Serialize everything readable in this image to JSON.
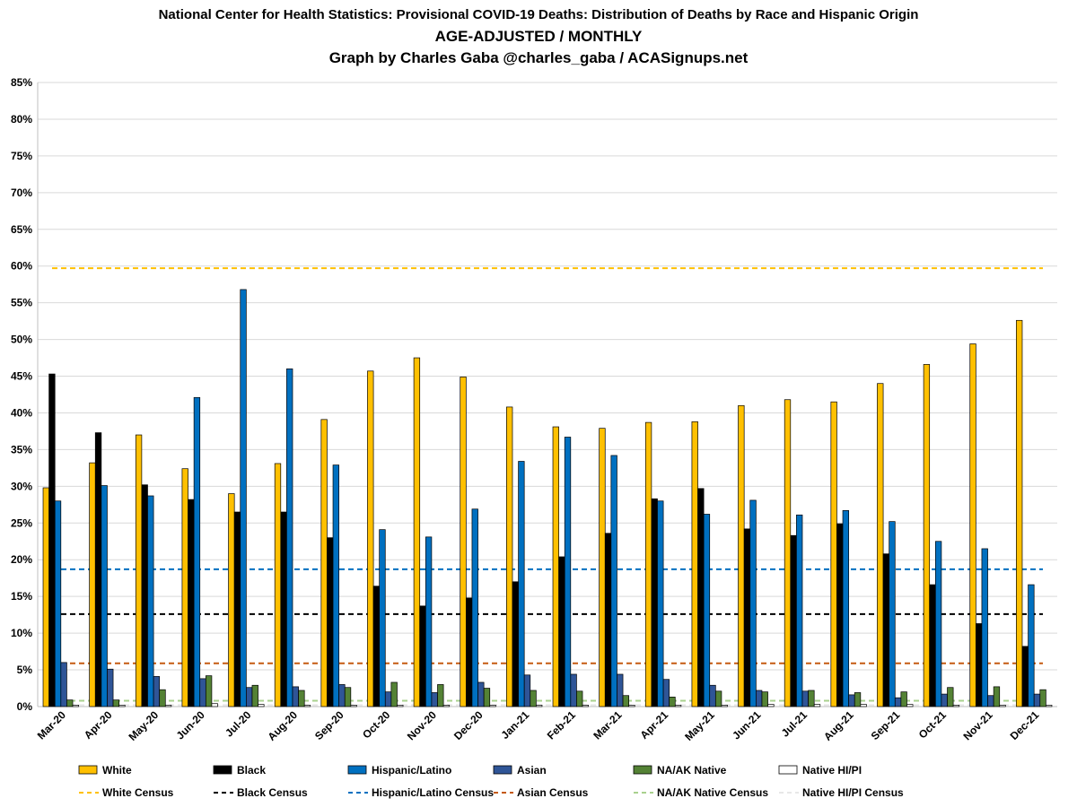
{
  "chart_data": {
    "type": "bar",
    "title": "National Center for Health Statistics: Provisional COVID-19 Deaths: Distribution of Deaths by Race and Hispanic Origin",
    "subtitle": "AGE-ADJUSTED / MONTHLY",
    "credit": "Graph by Charles Gaba @charles_gaba / ACASignups.net",
    "xlabel": "",
    "ylabel": "",
    "ylim": [
      0,
      85
    ],
    "yticks": [
      "0%",
      "5%",
      "10%",
      "15%",
      "20%",
      "25%",
      "30%",
      "35%",
      "40%",
      "45%",
      "50%",
      "55%",
      "60%",
      "65%",
      "70%",
      "75%",
      "80%",
      "85%"
    ],
    "grid": true,
    "legend_position": "bottom",
    "categories": [
      "Mar-20",
      "Apr-20",
      "May-20",
      "Jun-20",
      "Jul-20",
      "Aug-20",
      "Sep-20",
      "Oct-20",
      "Nov-20",
      "Dec-20",
      "Jan-21",
      "Feb-21",
      "Mar-21",
      "Apr-21",
      "May-21",
      "Jun-21",
      "Jul-21",
      "Aug-21",
      "Sep-21",
      "Oct-21",
      "Nov-21",
      "Dec-21"
    ],
    "series": [
      {
        "name": "White",
        "color": "#FFC000",
        "values": [
          29.8,
          33.2,
          37.0,
          32.4,
          29.0,
          33.1,
          39.1,
          45.7,
          47.5,
          44.9,
          40.8,
          38.1,
          37.9,
          38.7,
          38.8,
          41.0,
          41.8,
          41.5,
          44.0,
          46.6,
          49.4,
          52.6
        ]
      },
      {
        "name": "Black",
        "color": "#000000",
        "values": [
          45.3,
          37.3,
          30.2,
          28.2,
          26.5,
          26.5,
          23.0,
          16.4,
          13.7,
          14.8,
          17.0,
          20.4,
          23.6,
          28.3,
          29.7,
          24.2,
          23.3,
          24.9,
          20.8,
          16.6,
          11.3,
          8.2
        ]
      },
      {
        "name": "Hispanic/Latino",
        "color": "#0070C0",
        "values": [
          28.0,
          30.1,
          28.7,
          42.1,
          56.8,
          46.0,
          32.9,
          24.1,
          23.1,
          26.9,
          33.4,
          36.7,
          34.2,
          28.0,
          26.2,
          28.1,
          26.1,
          26.7,
          25.2,
          22.5,
          21.5,
          16.6
        ]
      },
      {
        "name": "Asian",
        "color": "#2F5597",
        "values": [
          6.0,
          5.1,
          4.1,
          3.8,
          2.6,
          2.7,
          3.0,
          2.0,
          1.9,
          3.3,
          4.3,
          4.4,
          4.4,
          3.7,
          2.9,
          2.2,
          2.1,
          1.6,
          1.2,
          1.7,
          1.5,
          1.7
        ]
      },
      {
        "name": "NA/AK Native",
        "color": "#548235",
        "values": [
          0.9,
          0.9,
          2.3,
          4.2,
          2.9,
          2.2,
          2.6,
          3.3,
          3.0,
          2.5,
          2.2,
          2.1,
          1.5,
          1.3,
          2.1,
          2.0,
          2.2,
          1.9,
          2.0,
          2.6,
          2.7,
          2.3
        ]
      },
      {
        "name": "Native HI/PI",
        "color": "#FFFFFF",
        "values": [
          0.2,
          0.2,
          0.2,
          0.4,
          0.3,
          0.2,
          0.2,
          0.2,
          0.2,
          0.2,
          0.2,
          0.2,
          0.2,
          0.2,
          0.2,
          0.3,
          0.3,
          0.3,
          0.3,
          0.2,
          0.2,
          0.2
        ]
      }
    ],
    "reference_lines": [
      {
        "name": "White Census",
        "color": "#FFC000",
        "value": 59.7
      },
      {
        "name": "Black Census",
        "color": "#000000",
        "value": 12.6
      },
      {
        "name": "Hispanic/Latino Census",
        "color": "#0070C0",
        "value": 18.7
      },
      {
        "name": "Asian Census",
        "color": "#C55A11",
        "value": 5.9
      },
      {
        "name": "NA/AK Native Census",
        "color": "#A9D18E",
        "value": 0.8
      },
      {
        "name": "Native HI/PI Census",
        "color": "#E8E8E8",
        "value": 0.2
      }
    ]
  }
}
